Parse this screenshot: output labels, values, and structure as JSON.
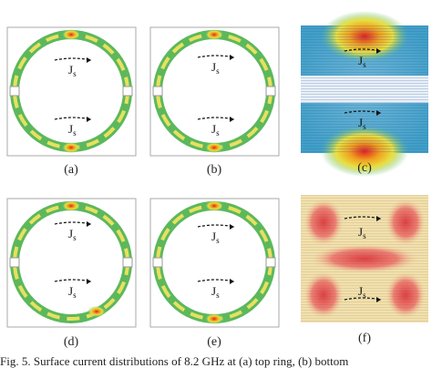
{
  "figure": {
    "panels": [
      {
        "label": "(a)",
        "annotations": [
          {
            "symbol": "J",
            "subscript": "s"
          },
          {
            "symbol": "J",
            "subscript": "s"
          }
        ]
      },
      {
        "label": "(b)",
        "annotations": [
          {
            "symbol": "J",
            "subscript": "s"
          },
          {
            "symbol": "J",
            "subscript": "s"
          }
        ]
      },
      {
        "label": "(c)",
        "annotations": [
          {
            "symbol": "J",
            "subscript": "s"
          },
          {
            "symbol": "J",
            "subscript": "s"
          }
        ]
      },
      {
        "label": "(d)",
        "annotations": [
          {
            "symbol": "J",
            "subscript": "s"
          },
          {
            "symbol": "J",
            "subscript": "s"
          }
        ]
      },
      {
        "label": "(e)",
        "annotations": [
          {
            "symbol": "J",
            "subscript": "s"
          },
          {
            "symbol": "J",
            "subscript": "s"
          }
        ]
      },
      {
        "label": "(f)",
        "annotations": [
          {
            "symbol": "J",
            "subscript": "s"
          },
          {
            "symbol": "J",
            "subscript": "s"
          }
        ]
      }
    ],
    "caption": "Fig. 5. Surface current distributions of 8.2 GHz at (a) top ring, (b) bottom"
  }
}
